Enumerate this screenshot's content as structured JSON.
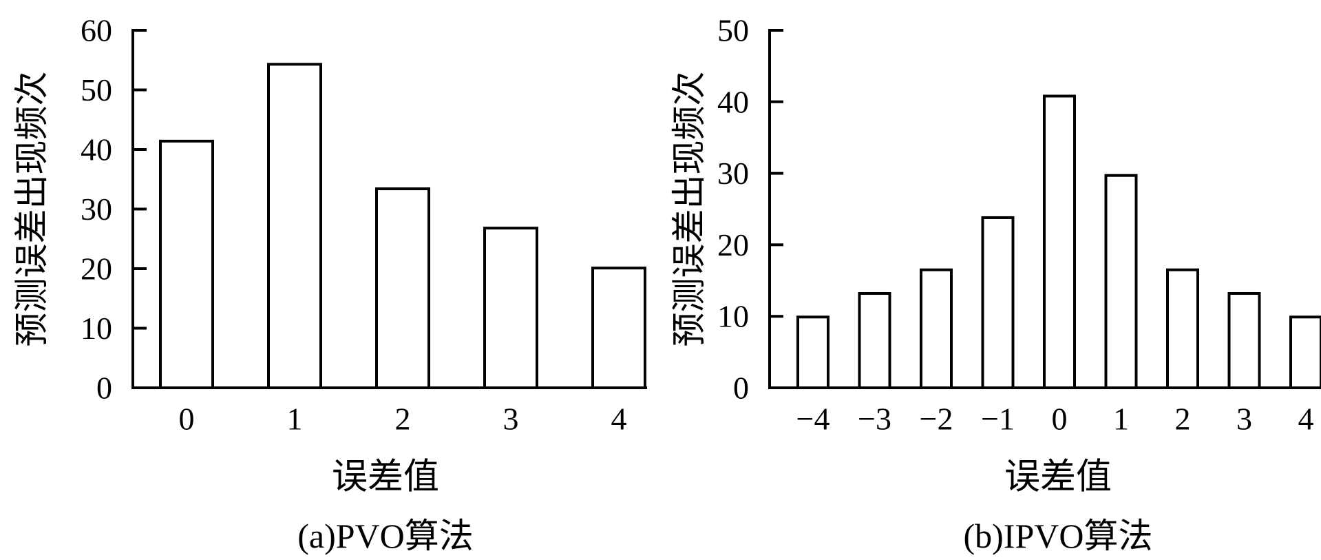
{
  "chart_data": [
    {
      "type": "bar",
      "categories": [
        "0",
        "1",
        "2",
        "3",
        "4"
      ],
      "values": [
        41.4,
        54.3,
        33.4,
        26.8,
        20.1
      ],
      "xlabel": "误差值",
      "ylabel": "预测误差出现频次",
      "caption": "(a)PVO算法",
      "ylim": [
        0,
        60
      ],
      "yticks": [
        "0",
        "10",
        "20",
        "30",
        "40",
        "50",
        "60"
      ],
      "grid": false,
      "bar_fill": "#ffffff",
      "bar_stroke": "#000000"
    },
    {
      "type": "bar",
      "categories": [
        "−4",
        "−3",
        "−2",
        "−1",
        "0",
        "1",
        "2",
        "3",
        "4"
      ],
      "values": [
        9.9,
        13.2,
        16.5,
        23.8,
        40.8,
        29.7,
        16.5,
        13.2,
        9.9
      ],
      "xlabel": "误差值",
      "ylabel": "预测误差出现频次",
      "caption": "(b)IPVO算法",
      "ylim": [
        0,
        50
      ],
      "yticks": [
        "0",
        "10",
        "20",
        "30",
        "40",
        "50"
      ],
      "grid": false,
      "bar_fill": "#ffffff",
      "bar_stroke": "#000000"
    }
  ]
}
